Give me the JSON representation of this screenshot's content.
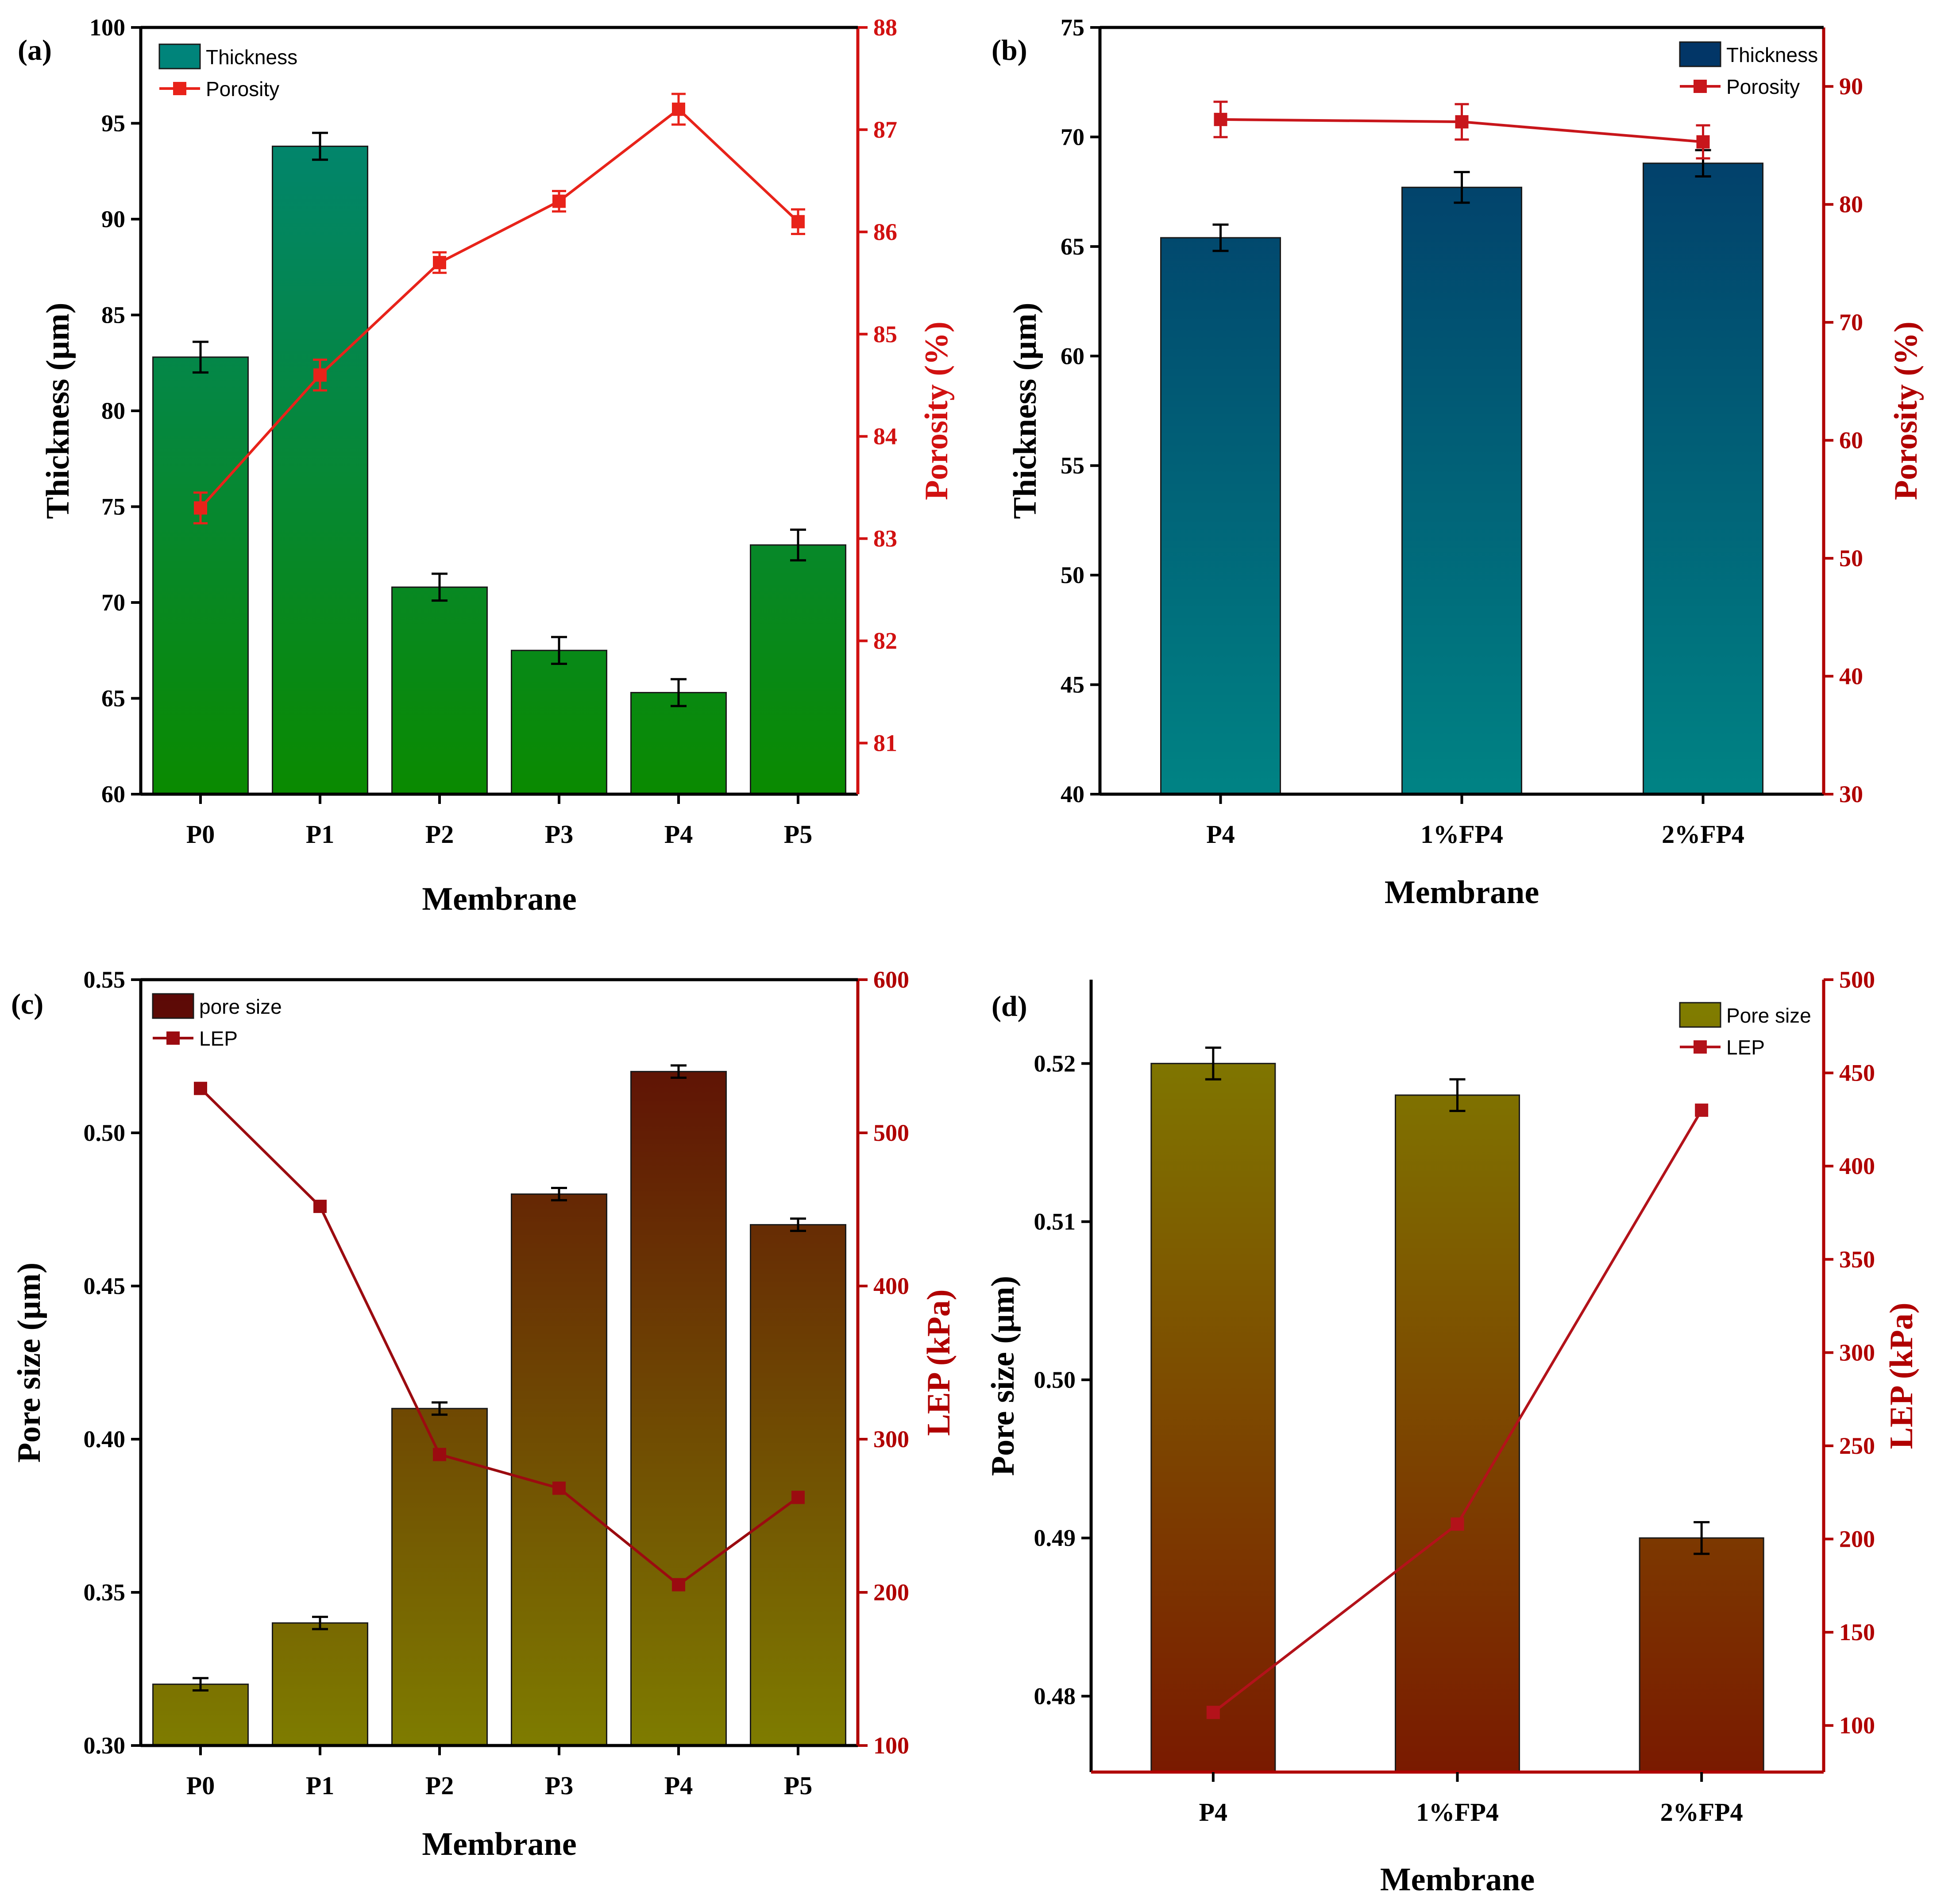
{
  "chart_data": [
    {
      "panel": "(a)",
      "type": "bar",
      "categories": [
        "P0",
        "P1",
        "P2",
        "P3",
        "P4",
        "P5"
      ],
      "xlabel": "Membrane",
      "ylabel": "Thickness (µm)",
      "y2label": "Porosity (%)",
      "ylim": [
        60,
        100
      ],
      "yticks": [
        60,
        65,
        70,
        75,
        80,
        85,
        90,
        95,
        100
      ],
      "y2lim": [
        80.5,
        88
      ],
      "y2ticks": [
        81,
        82,
        83,
        84,
        85,
        86,
        87,
        88
      ],
      "series": [
        {
          "name": "Thickness",
          "type": "bar",
          "axis": "left",
          "values": [
            82.8,
            93.8,
            70.8,
            67.5,
            65.3,
            73.0
          ],
          "errors": [
            0.8,
            0.7,
            0.7,
            0.7,
            0.7,
            0.8
          ],
          "gradient": [
            "#00847f",
            "#0a8a00"
          ]
        },
        {
          "name": "Porosity",
          "type": "line",
          "axis": "right",
          "values": [
            83.3,
            84.6,
            85.7,
            86.3,
            87.2,
            86.1
          ],
          "errors": [
            0.15,
            0.15,
            0.1,
            0.1,
            0.15,
            0.12
          ],
          "color": "#e8231a"
        }
      ],
      "legend": [
        "Thickness",
        "Porosity"
      ],
      "legend_position": "top-left"
    },
    {
      "panel": "(b)",
      "type": "bar",
      "categories": [
        "P4",
        "1%FP4",
        "2%FP4"
      ],
      "xlabel": "Membrane",
      "ylabel": "Thickness (µm)",
      "y2label": "Porosity (%)",
      "ylim": [
        40,
        75
      ],
      "yticks": [
        40,
        45,
        50,
        55,
        60,
        65,
        70,
        75
      ],
      "y2lim": [
        30,
        95
      ],
      "y2ticks": [
        30,
        40,
        50,
        60,
        70,
        80,
        90
      ],
      "series": [
        {
          "name": "Thickness",
          "type": "bar",
          "axis": "left",
          "values": [
            65.4,
            67.7,
            68.8
          ],
          "errors": [
            0.6,
            0.7,
            0.6
          ],
          "gradient": [
            "#023366",
            "#008384"
          ]
        },
        {
          "name": "Porosity",
          "type": "line",
          "axis": "right",
          "values": [
            87.2,
            87.0,
            85.3
          ],
          "errors": [
            1.5,
            1.5,
            1.4
          ],
          "color": "#c8161b"
        }
      ],
      "legend": [
        "Thickness",
        "Porosity"
      ],
      "legend_position": "top-right"
    },
    {
      "panel": "(c)",
      "type": "bar",
      "categories": [
        "P0",
        "P1",
        "P2",
        "P3",
        "P4",
        "P5"
      ],
      "xlabel": "Membrane",
      "ylabel": "Pore size (µm)",
      "y2label": "LEP (kPa)",
      "ylim": [
        0.3,
        0.55
      ],
      "yticks": [
        "0.30",
        "0.35",
        "0.40",
        "0.45",
        "0.50",
        "0.55"
      ],
      "y2lim": [
        100,
        600
      ],
      "y2ticks": [
        100,
        200,
        300,
        400,
        500,
        600
      ],
      "series": [
        {
          "name": "pore size",
          "type": "bar",
          "axis": "left",
          "values": [
            0.32,
            0.34,
            0.41,
            0.48,
            0.52,
            0.47
          ],
          "errors": [
            0.002,
            0.002,
            0.002,
            0.002,
            0.002,
            0.002
          ],
          "gradient": [
            "#5c0606",
            "#7e7c00"
          ]
        },
        {
          "name": "LEP",
          "type": "line",
          "axis": "right",
          "values": [
            529,
            452,
            290,
            268,
            205,
            262
          ],
          "errors": [
            0,
            0,
            0,
            0,
            0,
            0
          ],
          "color": "#9b0b10"
        }
      ],
      "legend": [
        "pore size",
        "LEP"
      ],
      "legend_position": "top-left"
    },
    {
      "panel": "(d)",
      "type": "bar",
      "categories": [
        "P4",
        "1%FP4",
        "2%FP4"
      ],
      "xlabel": "Membrane",
      "ylabel": "Pore size (µm)",
      "y2label": "LEP (kPa)",
      "ylim": [
        0.4752,
        0.5253
      ],
      "yticks": [
        "0.48",
        "0.49",
        "0.50",
        "0.51",
        "0.52"
      ],
      "y2lim": [
        75,
        500
      ],
      "y2ticks": [
        100,
        150,
        200,
        250,
        300,
        350,
        400,
        450,
        500
      ],
      "series": [
        {
          "name": "Pore size",
          "type": "bar",
          "axis": "left",
          "values": [
            0.52,
            0.518,
            0.49
          ],
          "errors": [
            0.001,
            0.001,
            0.001
          ],
          "gradient": [
            "#808000",
            "#7a1a00"
          ]
        },
        {
          "name": "LEP",
          "type": "line",
          "axis": "right",
          "values": [
            107,
            208,
            430
          ],
          "errors": [
            0,
            0,
            0
          ],
          "color": "#b3121a"
        }
      ],
      "legend": [
        "Pore size",
        "LEP"
      ],
      "legend_position": "top-right"
    }
  ]
}
